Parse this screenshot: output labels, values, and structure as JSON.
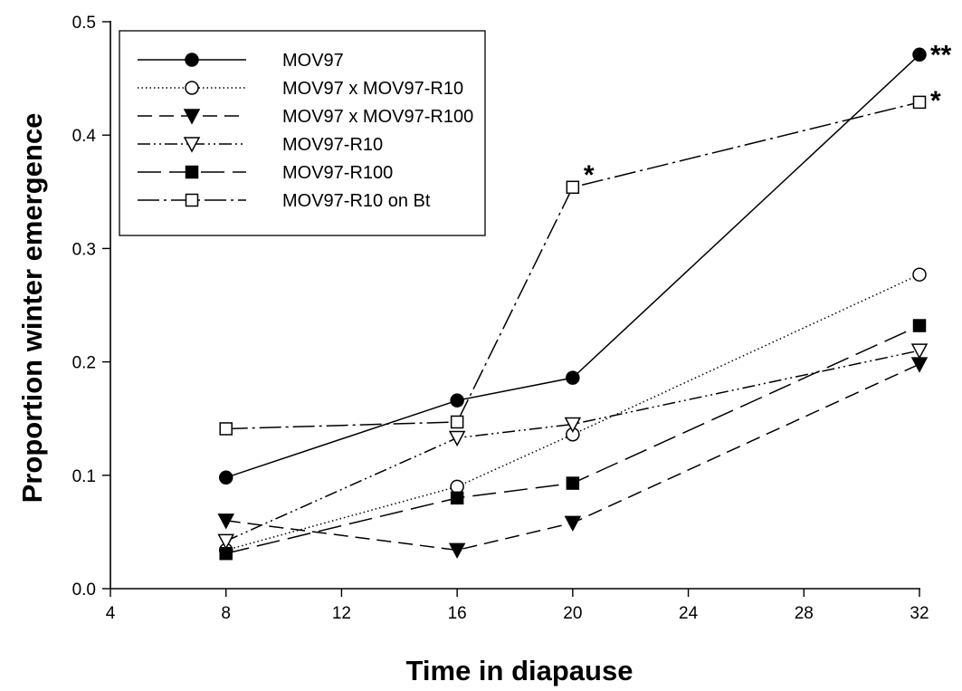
{
  "chart_data": {
    "type": "line",
    "title": "",
    "xlabel": "Time in diapause",
    "ylabel": "Proportion winter emergence",
    "xlim": [
      4,
      32
    ],
    "ylim": [
      0,
      0.5
    ],
    "xticks": [
      4,
      8,
      12,
      16,
      20,
      24,
      28,
      32
    ],
    "yticks": [
      0.0,
      0.1,
      0.2,
      0.3,
      0.4,
      0.5
    ],
    "xtick_labels": [
      "4",
      "8",
      "12",
      "16",
      "20",
      "24",
      "28",
      "32"
    ],
    "ytick_labels": [
      "0.0",
      "0.1",
      "0.2",
      "0.3",
      "0.4",
      "0.5"
    ],
    "grid": false,
    "legend_position": "top-left",
    "series": [
      {
        "name": "MOV97",
        "marker": "circle-filled",
        "dash": "solid",
        "points": [
          [
            8,
            0.098
          ],
          [
            16,
            0.166
          ],
          [
            20,
            0.186
          ],
          [
            32,
            0.471
          ]
        ]
      },
      {
        "name": "MOV97 x MOV97-R10",
        "marker": "circle-open",
        "dash": "dotted",
        "points": [
          [
            8,
            0.034
          ],
          [
            16,
            0.09
          ],
          [
            20,
            0.136
          ],
          [
            32,
            0.277
          ]
        ]
      },
      {
        "name": "MOV97 x MOV97-R100",
        "marker": "triangle-down-filled",
        "dash": "dashed",
        "points": [
          [
            8,
            0.06
          ],
          [
            16,
            0.034
          ],
          [
            20,
            0.058
          ],
          [
            32,
            0.198
          ]
        ]
      },
      {
        "name": "MOV97-R10",
        "marker": "triangle-down-open",
        "dash": "dash-dot-dot",
        "points": [
          [
            8,
            0.042
          ],
          [
            16,
            0.133
          ],
          [
            20,
            0.145
          ],
          [
            32,
            0.21
          ]
        ]
      },
      {
        "name": "MOV97-R100",
        "marker": "square-filled",
        "dash": "long-dash",
        "points": [
          [
            8,
            0.031
          ],
          [
            16,
            0.08
          ],
          [
            20,
            0.093
          ],
          [
            32,
            0.232
          ]
        ]
      },
      {
        "name": "MOV97-R10 on Bt",
        "marker": "square-open",
        "dash": "dash-dot",
        "points": [
          [
            8,
            0.141
          ],
          [
            16,
            0.147
          ],
          [
            20,
            0.354
          ],
          [
            32,
            0.429
          ]
        ]
      }
    ],
    "annotations": [
      {
        "text": "**",
        "x": 32,
        "y": 0.471
      },
      {
        "text": "*",
        "x": 32,
        "y": 0.429
      },
      {
        "text": "*",
        "x": 20,
        "y": 0.354
      }
    ]
  }
}
